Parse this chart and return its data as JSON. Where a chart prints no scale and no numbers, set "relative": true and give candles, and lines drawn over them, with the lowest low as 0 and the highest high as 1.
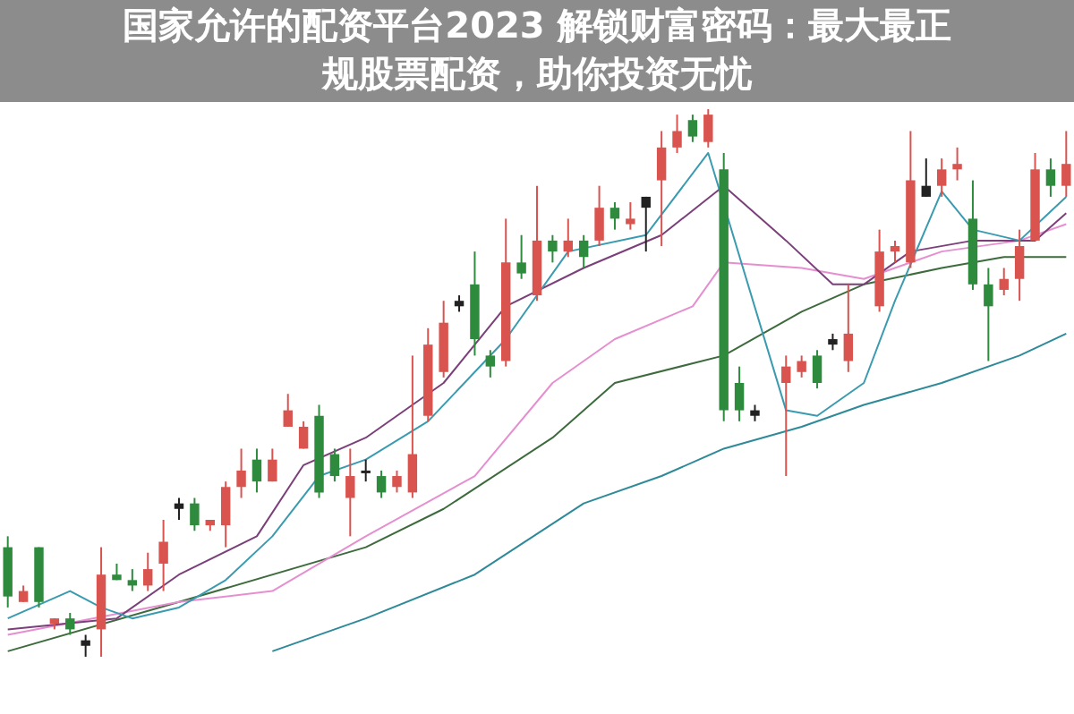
{
  "chart_data": {
    "type": "candlestick",
    "title": "国家允许的配资平台2023 解锁财富密码：最大最正规股票配资，助你投资无忧",
    "relative": true,
    "legend": false,
    "categories": [
      null,
      null,
      null,
      null,
      null,
      null,
      null,
      null,
      null,
      null,
      null,
      null,
      null,
      null,
      null,
      null,
      null,
      null,
      null,
      null,
      null,
      null,
      null,
      null,
      null,
      null,
      null,
      null,
      null,
      null,
      null,
      null,
      null,
      null,
      null,
      null,
      null,
      null,
      null,
      null,
      null,
      null,
      null,
      null,
      null,
      null,
      null,
      null,
      null,
      null,
      null,
      null,
      null,
      null,
      null,
      null,
      null,
      null,
      null,
      null,
      null,
      null,
      null,
      null,
      null,
      null,
      null,
      null,
      null
    ],
    "ohlc": [
      [
        0.2,
        0.22,
        0.09,
        0.11
      ],
      [
        0.1,
        0.13,
        0.1,
        0.12
      ],
      [
        0.2,
        0.2,
        0.09,
        0.1
      ],
      [
        0.06,
        0.07,
        0.05,
        0.07
      ],
      [
        0.07,
        0.08,
        0.04,
        0.05
      ],
      [
        0.03,
        0.04,
        0,
        0.02
      ],
      [
        0.05,
        0.2,
        0,
        0.15
      ],
      [
        0.15,
        0.17,
        0.14,
        0.14
      ],
      [
        0.14,
        0.16,
        0.12,
        0.13
      ],
      [
        0.13,
        0.19,
        0.12,
        0.16
      ],
      [
        0.17,
        0.25,
        0.12,
        0.21
      ],
      [
        0.28,
        0.29,
        0.25,
        0.27
      ],
      [
        0.28,
        0.29,
        0.23,
        0.24
      ],
      [
        0.24,
        0.25,
        0.23,
        0.25
      ],
      [
        0.24,
        0.32,
        0.2,
        0.31
      ],
      [
        0.31,
        0.38,
        0.29,
        0.34
      ],
      [
        0.36,
        0.38,
        0.3,
        0.32
      ],
      [
        0.32,
        0.38,
        0.32,
        0.36
      ],
      [
        0.42,
        0.48,
        0.42,
        0.45
      ],
      [
        0.38,
        0.43,
        0.38,
        0.42
      ],
      [
        0.44,
        0.46,
        0.29,
        0.3
      ],
      [
        0.37,
        0.38,
        0.32,
        0.33
      ],
      [
        0.29,
        0.38,
        0.22,
        0.33
      ],
      [
        0.34,
        0.36,
        0.32,
        0.34
      ],
      [
        0.33,
        0.34,
        0.29,
        0.3
      ],
      [
        0.31,
        0.34,
        0.3,
        0.33
      ],
      [
        0.3,
        0.55,
        0.29,
        0.37
      ],
      [
        0.44,
        0.6,
        0.43,
        0.57
      ],
      [
        0.52,
        0.65,
        0.51,
        0.61
      ],
      [
        0.65,
        0.66,
        0.63,
        0.64
      ],
      [
        0.68,
        0.74,
        0.55,
        0.58
      ],
      [
        0.55,
        0.56,
        0.51,
        0.53
      ],
      [
        0.54,
        0.8,
        0.53,
        0.72
      ],
      [
        0.72,
        0.77,
        0.69,
        0.7
      ],
      [
        0.66,
        0.86,
        0.65,
        0.76
      ],
      [
        0.76,
        0.77,
        0.72,
        0.74
      ],
      [
        0.74,
        0.8,
        0.73,
        0.76
      ],
      [
        0.76,
        0.77,
        0.71,
        0.73
      ],
      [
        0.76,
        0.86,
        0.75,
        0.82
      ],
      [
        0.82,
        0.83,
        0.78,
        0.8
      ],
      [
        0.79,
        0.83,
        0.78,
        0.8
      ],
      [
        0.84,
        0.84,
        0.74,
        0.82
      ],
      [
        0.87,
        0.96,
        0.75,
        0.93
      ],
      [
        0.93,
        0.99,
        0.92,
        0.96
      ],
      [
        0.98,
        0.99,
        0.94,
        0.95
      ],
      [
        0.94,
        1,
        0.93,
        0.99
      ],
      [
        0.89,
        0.92,
        0.43,
        0.45
      ],
      [
        0.5,
        0.53,
        0.43,
        0.45
      ],
      [
        0.45,
        0.46,
        0.43,
        0.44
      ],
      null,
      [
        0.5,
        0.55,
        0.33,
        0.53
      ],
      [
        0.52,
        0.55,
        0.51,
        0.54
      ],
      [
        0.55,
        0.56,
        0.49,
        0.5
      ],
      [
        0.58,
        0.59,
        0.56,
        0.57
      ],
      [
        0.54,
        0.68,
        0.52,
        0.59
      ],
      null,
      [
        0.64,
        0.78,
        0.63,
        0.74
      ],
      [
        0.74,
        0.76,
        0.72,
        0.75
      ],
      [
        0.72,
        0.96,
        0.71,
        0.87
      ],
      [
        0.86,
        0.91,
        0.84,
        0.84
      ],
      [
        0.86,
        0.91,
        0.84,
        0.89
      ],
      [
        0.89,
        0.93,
        0.87,
        0.9
      ],
      [
        0.8,
        0.87,
        0.67,
        0.68
      ],
      [
        0.68,
        0.71,
        0.54,
        0.64
      ],
      [
        0.67,
        0.71,
        0.66,
        0.69
      ],
      [
        0.69,
        0.78,
        0.65,
        0.75
      ],
      [
        0.76,
        0.92,
        0.76,
        0.89
      ],
      [
        0.89,
        0.91,
        0.84,
        0.86
      ],
      [
        0.86,
        0.96,
        0.84,
        0.9
      ]
    ],
    "colors": [
      "#2e8b3e",
      "#d9534f",
      "#2e8b3e",
      "#d9534f",
      "#2e8b3e",
      "#222222",
      "#d9534f",
      "#2e8b3e",
      "#2e8b3e",
      "#d9534f",
      "#d9534f",
      "#222222",
      "#2e8b3e",
      "#d9534f",
      "#d9534f",
      "#d9534f",
      "#2e8b3e",
      "#d9534f",
      "#d9534f",
      "#d9534f",
      "#2e8b3e",
      "#2e8b3e",
      "#d9534f",
      "#222222",
      "#2e8b3e",
      "#d9534f",
      "#d9534f",
      "#d9534f",
      "#d9534f",
      "#222222",
      "#2e8b3e",
      "#2e8b3e",
      "#d9534f",
      "#2e8b3e",
      "#d9534f",
      "#2e8b3e",
      "#d9534f",
      "#2e8b3e",
      "#d9534f",
      "#2e8b3e",
      "#d9534f",
      "#222222",
      "#d9534f",
      "#d9534f",
      "#2e8b3e",
      "#d9534f",
      "#2e8b3e",
      "#2e8b3e",
      "#222222",
      null,
      "#d9534f",
      "#d9534f",
      "#2e8b3e",
      "#222222",
      "#d9534f",
      null,
      "#d9534f",
      "#d9534f",
      "#d9534f",
      "#222222",
      "#d9534f",
      "#d9534f",
      "#2e8b3e",
      "#2e8b3e",
      "#d9534f",
      "#d9534f",
      "#d9534f",
      "#2e8b3e",
      "#d9534f"
    ],
    "series": [
      {
        "type": "line",
        "color": "#3a9bb0",
        "values": [
          0.07,
          null,
          null,
          null,
          0.12,
          null,
          0.09,
          null,
          0.07,
          null,
          null,
          0.09,
          null,
          null,
          0.14,
          null,
          null,
          0.22,
          null,
          null,
          0.33,
          null,
          null,
          0.36,
          null,
          null,
          null,
          0.43,
          null,
          null,
          null,
          null,
          0.58,
          null,
          null,
          null,
          0.74,
          null,
          null,
          null,
          null,
          0.77,
          null,
          null,
          null,
          0.92,
          null,
          null,
          null,
          null,
          0.45,
          null,
          0.44,
          null,
          null,
          0.5,
          null,
          0.65,
          null,
          null,
          0.85,
          null,
          0.78,
          null,
          null,
          0.76,
          null,
          null,
          0.84
        ]
      },
      {
        "type": "line",
        "color": "#7b3f7a",
        "values": [
          0.05,
          null,
          null,
          null,
          null,
          null,
          null,
          0.07,
          null,
          null,
          null,
          0.15,
          null,
          null,
          null,
          null,
          0.22,
          null,
          null,
          0.35,
          null,
          null,
          null,
          0.4,
          null,
          null,
          null,
          null,
          0.5,
          null,
          null,
          null,
          0.64,
          null,
          null,
          null,
          null,
          0.71,
          null,
          null,
          null,
          null,
          0.77,
          null,
          null,
          null,
          0.86,
          null,
          null,
          null,
          0.76,
          null,
          null,
          0.68,
          null,
          0.68,
          null,
          null,
          0.74,
          null,
          null,
          null,
          0.76,
          null,
          null,
          null,
          0.76,
          null,
          0.81
        ]
      },
      {
        "type": "line",
        "color": "#e58fd0",
        "values": [
          0.04,
          null,
          null,
          null,
          null,
          null,
          null,
          null,
          null,
          null,
          null,
          0.1,
          null,
          null,
          null,
          null,
          null,
          0.12,
          null,
          null,
          null,
          null,
          null,
          0.22,
          null,
          null,
          null,
          null,
          null,
          null,
          0.33,
          null,
          null,
          null,
          null,
          0.5,
          null,
          null,
          null,
          0.58,
          null,
          null,
          null,
          null,
          0.64,
          null,
          0.72,
          null,
          null,
          null,
          null,
          0.71,
          null,
          null,
          null,
          0.69,
          null,
          null,
          null,
          null,
          0.74,
          null,
          null,
          null,
          null,
          0.76,
          null,
          null,
          0.79
        ]
      },
      {
        "type": "line",
        "color": "#3d6b3d",
        "values": [
          0.01,
          null,
          null,
          null,
          null,
          null,
          null,
          null,
          null,
          null,
          null,
          0.1,
          null,
          null,
          null,
          null,
          null,
          null,
          null,
          null,
          null,
          null,
          null,
          0.2,
          null,
          null,
          null,
          null,
          0.27,
          null,
          null,
          null,
          null,
          null,
          null,
          0.4,
          null,
          null,
          null,
          0.5,
          null,
          null,
          null,
          null,
          null,
          null,
          0.55,
          null,
          null,
          null,
          null,
          0.63,
          null,
          null,
          null,
          0.68,
          null,
          null,
          null,
          null,
          0.71,
          null,
          null,
          null,
          0.73,
          null,
          null,
          null,
          0.73
        ]
      },
      {
        "type": "line",
        "color": "#2e8a99",
        "values": [
          null,
          null,
          null,
          null,
          null,
          null,
          null,
          null,
          null,
          null,
          null,
          null,
          null,
          null,
          null,
          null,
          null,
          0.01,
          null,
          null,
          null,
          null,
          null,
          0.07,
          null,
          null,
          null,
          null,
          null,
          null,
          0.15,
          null,
          null,
          null,
          null,
          null,
          null,
          0.28,
          null,
          null,
          null,
          null,
          0.33,
          null,
          null,
          null,
          0.38,
          null,
          null,
          null,
          null,
          0.42,
          null,
          null,
          null,
          0.46,
          null,
          null,
          null,
          null,
          0.5,
          null,
          null,
          null,
          null,
          0.55,
          null,
          null,
          0.59
        ]
      }
    ]
  }
}
